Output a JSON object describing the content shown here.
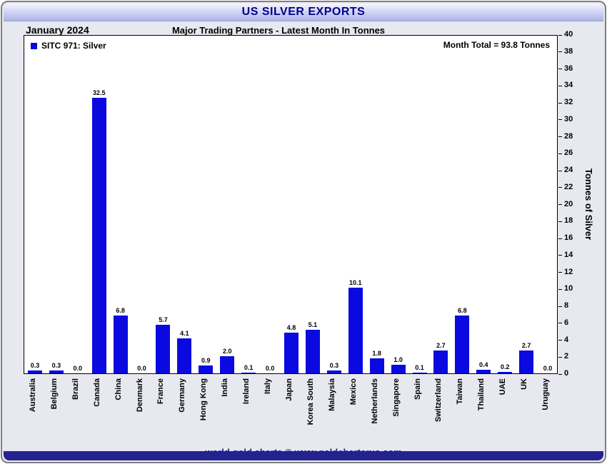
{
  "title": "US SILVER EXPORTS",
  "date_label": "January 2024",
  "subtitle": "Major Trading Partners - Latest Month In Tonnes",
  "legend": "SITC 971: Silver",
  "month_total": "Month Total = 93.8 Tonnes",
  "y_axis_label": "Tonnes of Silver",
  "footer": "world gold charts © www.goldchartsrus.com",
  "colors": {
    "bar": "#0a0ae0",
    "title_text": "#00008b",
    "footer_text": "#1a1a8c",
    "bottom_bar": "#23238f",
    "frame_background": "#e7e8f0",
    "plot_background": "#ffffff"
  },
  "chart_data": {
    "type": "bar",
    "title": "US SILVER EXPORTS",
    "subtitle": "Major Trading Partners - Latest Month In Tonnes",
    "period": "January 2024",
    "legend_entries": [
      "SITC 971: Silver"
    ],
    "legend_position": "top-left",
    "annotations": [
      "Month Total = 93.8 Tonnes"
    ],
    "xlabel": "",
    "ylabel": "Tonnes of Silver",
    "ylim": [
      0,
      40
    ],
    "ytick_step": 2,
    "grid": false,
    "categories": [
      "Australia",
      "Belgium",
      "Brazil",
      "Canada",
      "China",
      "Denmark",
      "France",
      "Germany",
      "Hong Kong",
      "India",
      "Ireland",
      "Italy",
      "Japan",
      "Korea South",
      "Malaysia",
      "Mexico",
      "Netherlands",
      "Singapore",
      "Spain",
      "Switzerland",
      "Taiwan",
      "Thailand",
      "UAE",
      "UK",
      "Uruguay"
    ],
    "values": [
      0.3,
      0.3,
      0.0,
      32.5,
      6.8,
      0.0,
      5.7,
      4.1,
      0.9,
      2.0,
      0.1,
      0.0,
      4.8,
      5.1,
      0.3,
      10.1,
      1.8,
      1.0,
      0.1,
      2.7,
      6.8,
      0.4,
      0.2,
      2.7,
      0.0
    ]
  }
}
